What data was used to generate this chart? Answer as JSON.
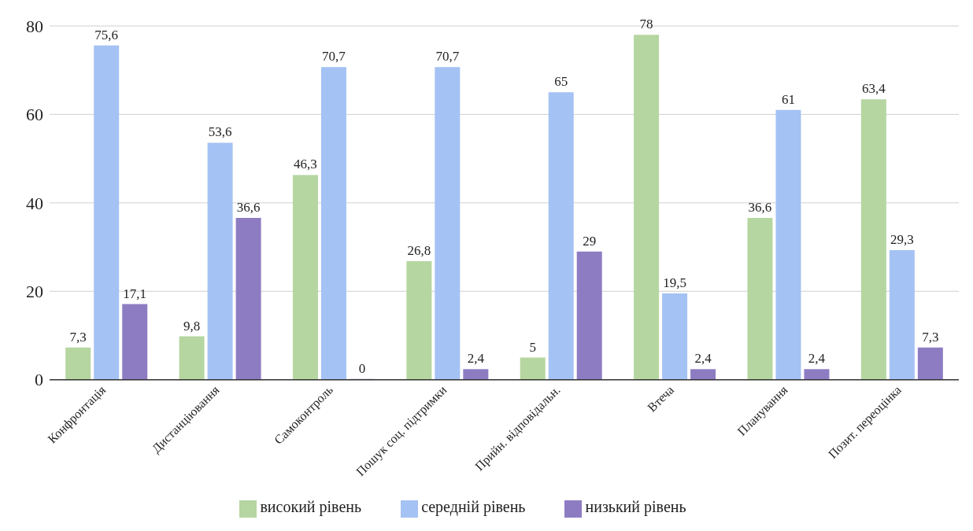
{
  "chart_data": {
    "type": "bar",
    "categories": [
      "Конфронтація",
      "Дистанціювання",
      "Самоконтроль",
      "Пошук соц. підтримки",
      "Прийн. відповідальн.",
      "Втеча",
      "Планування",
      "Позит. переоцінка"
    ],
    "series": [
      {
        "name": "високий рівень",
        "color": "#b5d6a0",
        "values": [
          7.3,
          9.8,
          46.3,
          26.8,
          5,
          78,
          36.6,
          63.4
        ],
        "value_labels": [
          "7,3",
          "9,8",
          "46,3",
          "26,8",
          "5",
          "78",
          "36,6",
          "63,4"
        ]
      },
      {
        "name": "середній рівень",
        "color": "#a4c2f4",
        "values": [
          75.6,
          53.6,
          70.7,
          70.7,
          65,
          19.5,
          61,
          29.3
        ],
        "value_labels": [
          "75,6",
          "53,6",
          "70,7",
          "70,7",
          "65",
          "19,5",
          "61",
          "29,3"
        ]
      },
      {
        "name": "низький рівень",
        "color": "#8e7cc3",
        "values": [
          17.1,
          36.6,
          0,
          2.4,
          29,
          2.4,
          2.4,
          7.3
        ],
        "value_labels": [
          "17,1",
          "36,6",
          "0",
          "2,4",
          "29",
          "2,4",
          "2,4",
          "7,3"
        ]
      }
    ],
    "ylim": [
      0,
      80
    ],
    "yticks": [
      0,
      20,
      40,
      60,
      80
    ],
    "grid": "y",
    "legend": "bottom"
  }
}
